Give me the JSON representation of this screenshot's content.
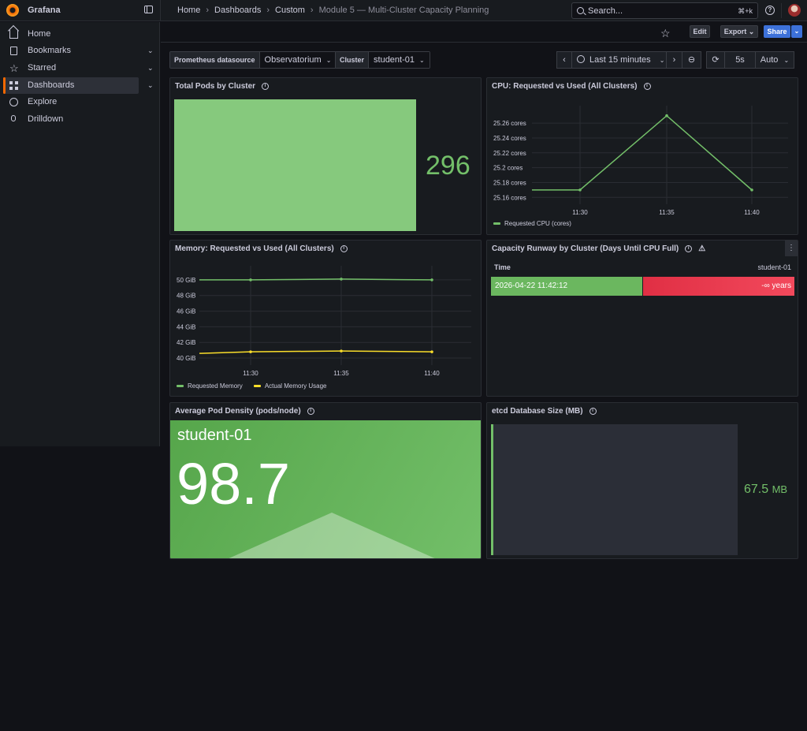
{
  "app": {
    "name": "Grafana"
  },
  "breadcrumbs": [
    "Home",
    "Dashboards",
    "Custom",
    "Module 5 — Multi-Cluster Capacity Planning"
  ],
  "search": {
    "placeholder": "Search...",
    "shortcut": "⌘+k"
  },
  "sidebar": {
    "items": [
      {
        "label": "Home",
        "icon": "home-icon"
      },
      {
        "label": "Bookmarks",
        "icon": "bookmark-icon",
        "expandable": true
      },
      {
        "label": "Starred",
        "icon": "star-icon",
        "expandable": true
      },
      {
        "label": "Dashboards",
        "icon": "dashboards-icon",
        "expandable": true,
        "active": true
      },
      {
        "label": "Explore",
        "icon": "compass-icon"
      },
      {
        "label": "Drilldown",
        "icon": "microphone-icon"
      }
    ]
  },
  "toolbar": {
    "edit": "Edit",
    "export": "Export",
    "share": "Share"
  },
  "variables": {
    "datasource_label": "Prometheus datasource",
    "datasource_value": "Observatorium",
    "cluster_label": "Cluster",
    "cluster_value": "student-01"
  },
  "time": {
    "range": "Last 15 minutes",
    "refresh": "5s",
    "auto": "Auto"
  },
  "colors": {
    "green": "#73bf69",
    "yellow": "#fade2a",
    "red": "#f2495c",
    "accent": "#f46800",
    "primary": "#3d71d9"
  },
  "panels": {
    "total_pods": {
      "title": "Total Pods by Cluster",
      "value": "296"
    },
    "cpu": {
      "title": "CPU: Requested vs Used (All Clusters)",
      "legend": "Requested CPU (cores)"
    },
    "memory": {
      "title": "Memory: Requested vs Used (All Clusters)",
      "legend_1": "Requested Memory",
      "legend_2": "Actual Memory Usage"
    },
    "runway": {
      "title": "Capacity Runway by Cluster (Days Until CPU Full)",
      "col_time": "Time",
      "col_cluster": "student-01",
      "row_time": "2026-04-22 11:42:12",
      "row_value": "-∞ years"
    },
    "density": {
      "title": "Average Pod Density (pods/node)",
      "name": "student-01",
      "value": "98.7"
    },
    "etcd": {
      "title": "etcd Database Size (MB)",
      "value": "67.5",
      "unit": "MB"
    }
  },
  "chart_data": [
    {
      "type": "line",
      "ylabel_unit": "cores",
      "x": [
        "11:27",
        "11:30",
        "11:35",
        "11:40"
      ],
      "xticks": [
        "11:30",
        "11:35",
        "11:40"
      ],
      "yticks": [
        "25.16 cores",
        "25.18 cores",
        "25.2 cores",
        "25.22 cores",
        "25.24 cores",
        "25.26 cores"
      ],
      "ylim": [
        25.155,
        25.275
      ],
      "series": [
        {
          "name": "Requested CPU (cores)",
          "values": [
            25.17,
            25.17,
            25.27,
            25.17
          ]
        }
      ]
    },
    {
      "type": "line",
      "ylabel_unit": "GiB",
      "x": [
        "11:27",
        "11:30",
        "11:35",
        "11:40"
      ],
      "xticks": [
        "11:30",
        "11:35",
        "11:40"
      ],
      "yticks": [
        "40 GiB",
        "42 GiB",
        "44 GiB",
        "46 GiB",
        "48 GiB",
        "50 GiB"
      ],
      "ylim": [
        39.5,
        51
      ],
      "series": [
        {
          "name": "Requested Memory",
          "values": [
            50,
            50,
            50.1,
            50
          ]
        },
        {
          "name": "Actual Memory Usage",
          "values": [
            40.6,
            40.8,
            40.9,
            40.8
          ]
        }
      ]
    }
  ]
}
